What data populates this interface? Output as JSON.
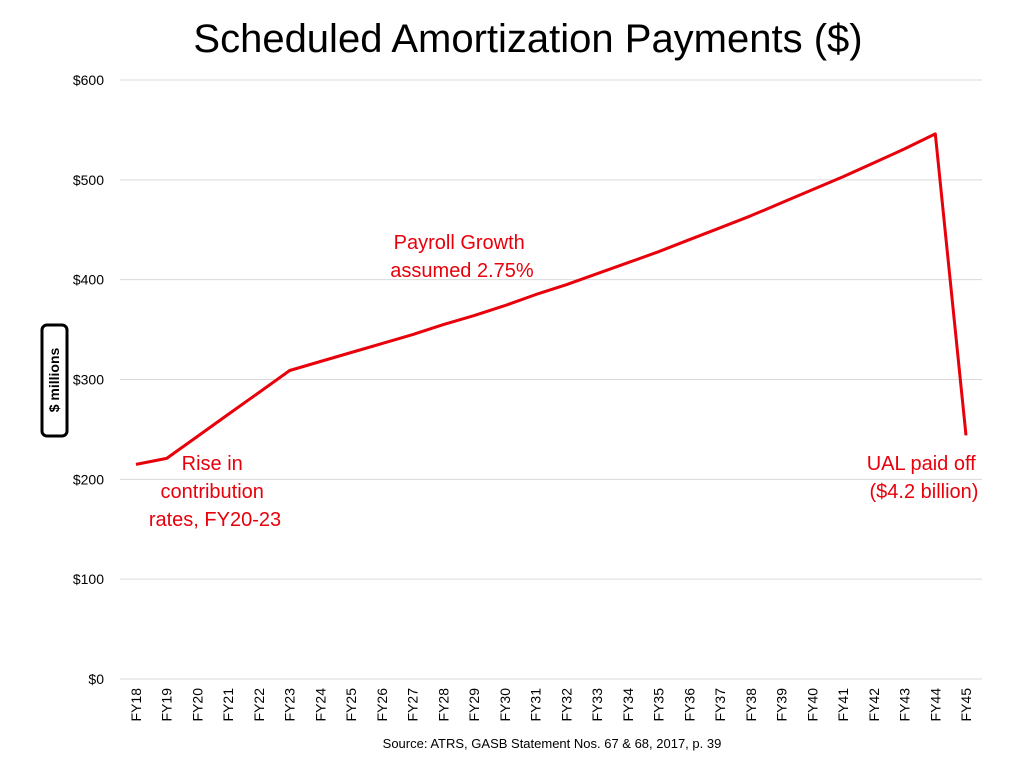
{
  "chart_data": {
    "type": "line",
    "title": "Scheduled Amortization Payments ($)",
    "xlabel": "",
    "ylabel": "$ millions",
    "ylim": [
      0,
      600
    ],
    "yticks": [
      "$0",
      "$100",
      "$200",
      "$300",
      "$400",
      "$500",
      "$600"
    ],
    "ytick_values": [
      0,
      100,
      200,
      300,
      400,
      500,
      600
    ],
    "grid": true,
    "categories": [
      "FY18",
      "FY19",
      "FY20",
      "FY21",
      "FY22",
      "FY23",
      "FY24",
      "FY25",
      "FY26",
      "FY27",
      "FY28",
      "FY29",
      "FY30",
      "FY31",
      "FY32",
      "FY33",
      "FY34",
      "FY35",
      "FY36",
      "FY37",
      "FY38",
      "FY39",
      "FY40",
      "FY41",
      "FY42",
      "FY43",
      "FY44",
      "FY45"
    ],
    "series": [
      {
        "color": "#e8000b",
        "values": [
          215,
          221,
          243,
          265,
          287,
          309,
          318,
          327,
          336,
          345,
          355,
          364,
          374,
          385,
          395,
          406,
          417,
          428,
          440,
          452,
          464,
          477,
          490,
          503,
          517,
          531,
          546,
          244
        ]
      }
    ],
    "annotations": [
      {
        "lines": [
          "Payroll Growth",
          "assumed 2.75%"
        ]
      },
      {
        "lines": [
          "Rise in",
          "contribution",
          "rates, FY20-23"
        ]
      },
      {
        "lines": [
          "UAL paid off",
          "($4.2 billion)"
        ]
      }
    ],
    "source": "Source:  ATRS, GASB Statement Nos. 67 & 68, 2017, p. 39"
  }
}
